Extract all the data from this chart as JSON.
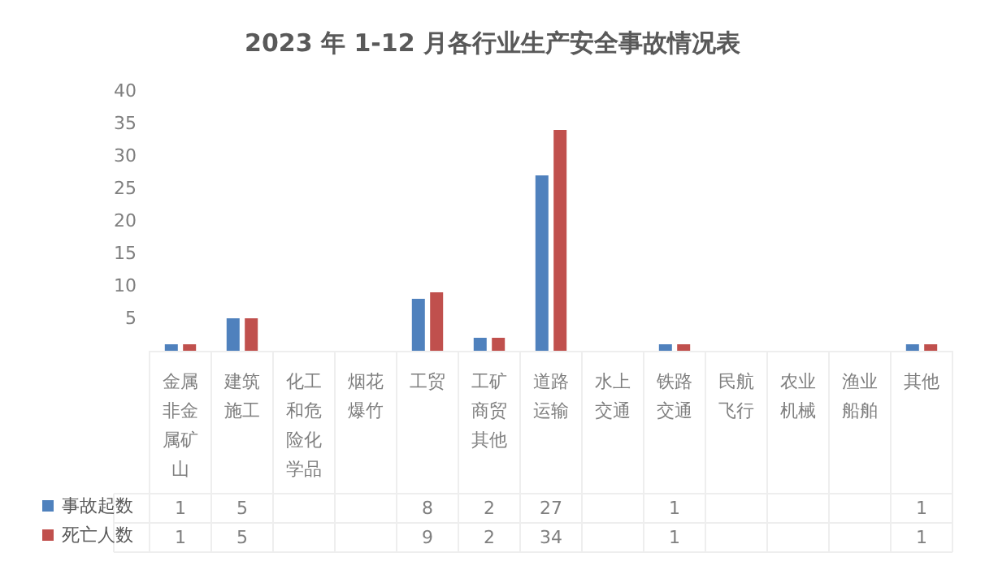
{
  "chart_data": {
    "type": "bar",
    "title": "2023 年 1-12 月各行业生产安全事故情况表",
    "categories": [
      "金属非金属矿山",
      "建筑施工",
      "化工和危险化学品",
      "烟花爆竹",
      "工贸",
      "工矿商贸其他",
      "道路运输",
      "水上交通",
      "铁路交通",
      "民航飞行",
      "农业机械",
      "渔业船舶",
      "其他"
    ],
    "series": [
      {
        "name": "事故起数",
        "color": "#4f81bd",
        "values": [
          1,
          5,
          null,
          null,
          8,
          2,
          27,
          null,
          1,
          null,
          null,
          null,
          1
        ]
      },
      {
        "name": "死亡人数",
        "color": "#c0504d",
        "values": [
          1,
          5,
          null,
          null,
          9,
          2,
          34,
          null,
          1,
          null,
          null,
          null,
          1
        ]
      }
    ],
    "ylim": [
      0,
      40
    ],
    "yticks": [
      {
        "value": 0,
        "label": null
      },
      5,
      10,
      15,
      20,
      25,
      30,
      35,
      40
    ],
    "grid": false,
    "legend": "bottom left",
    "data_labels": true
  }
}
